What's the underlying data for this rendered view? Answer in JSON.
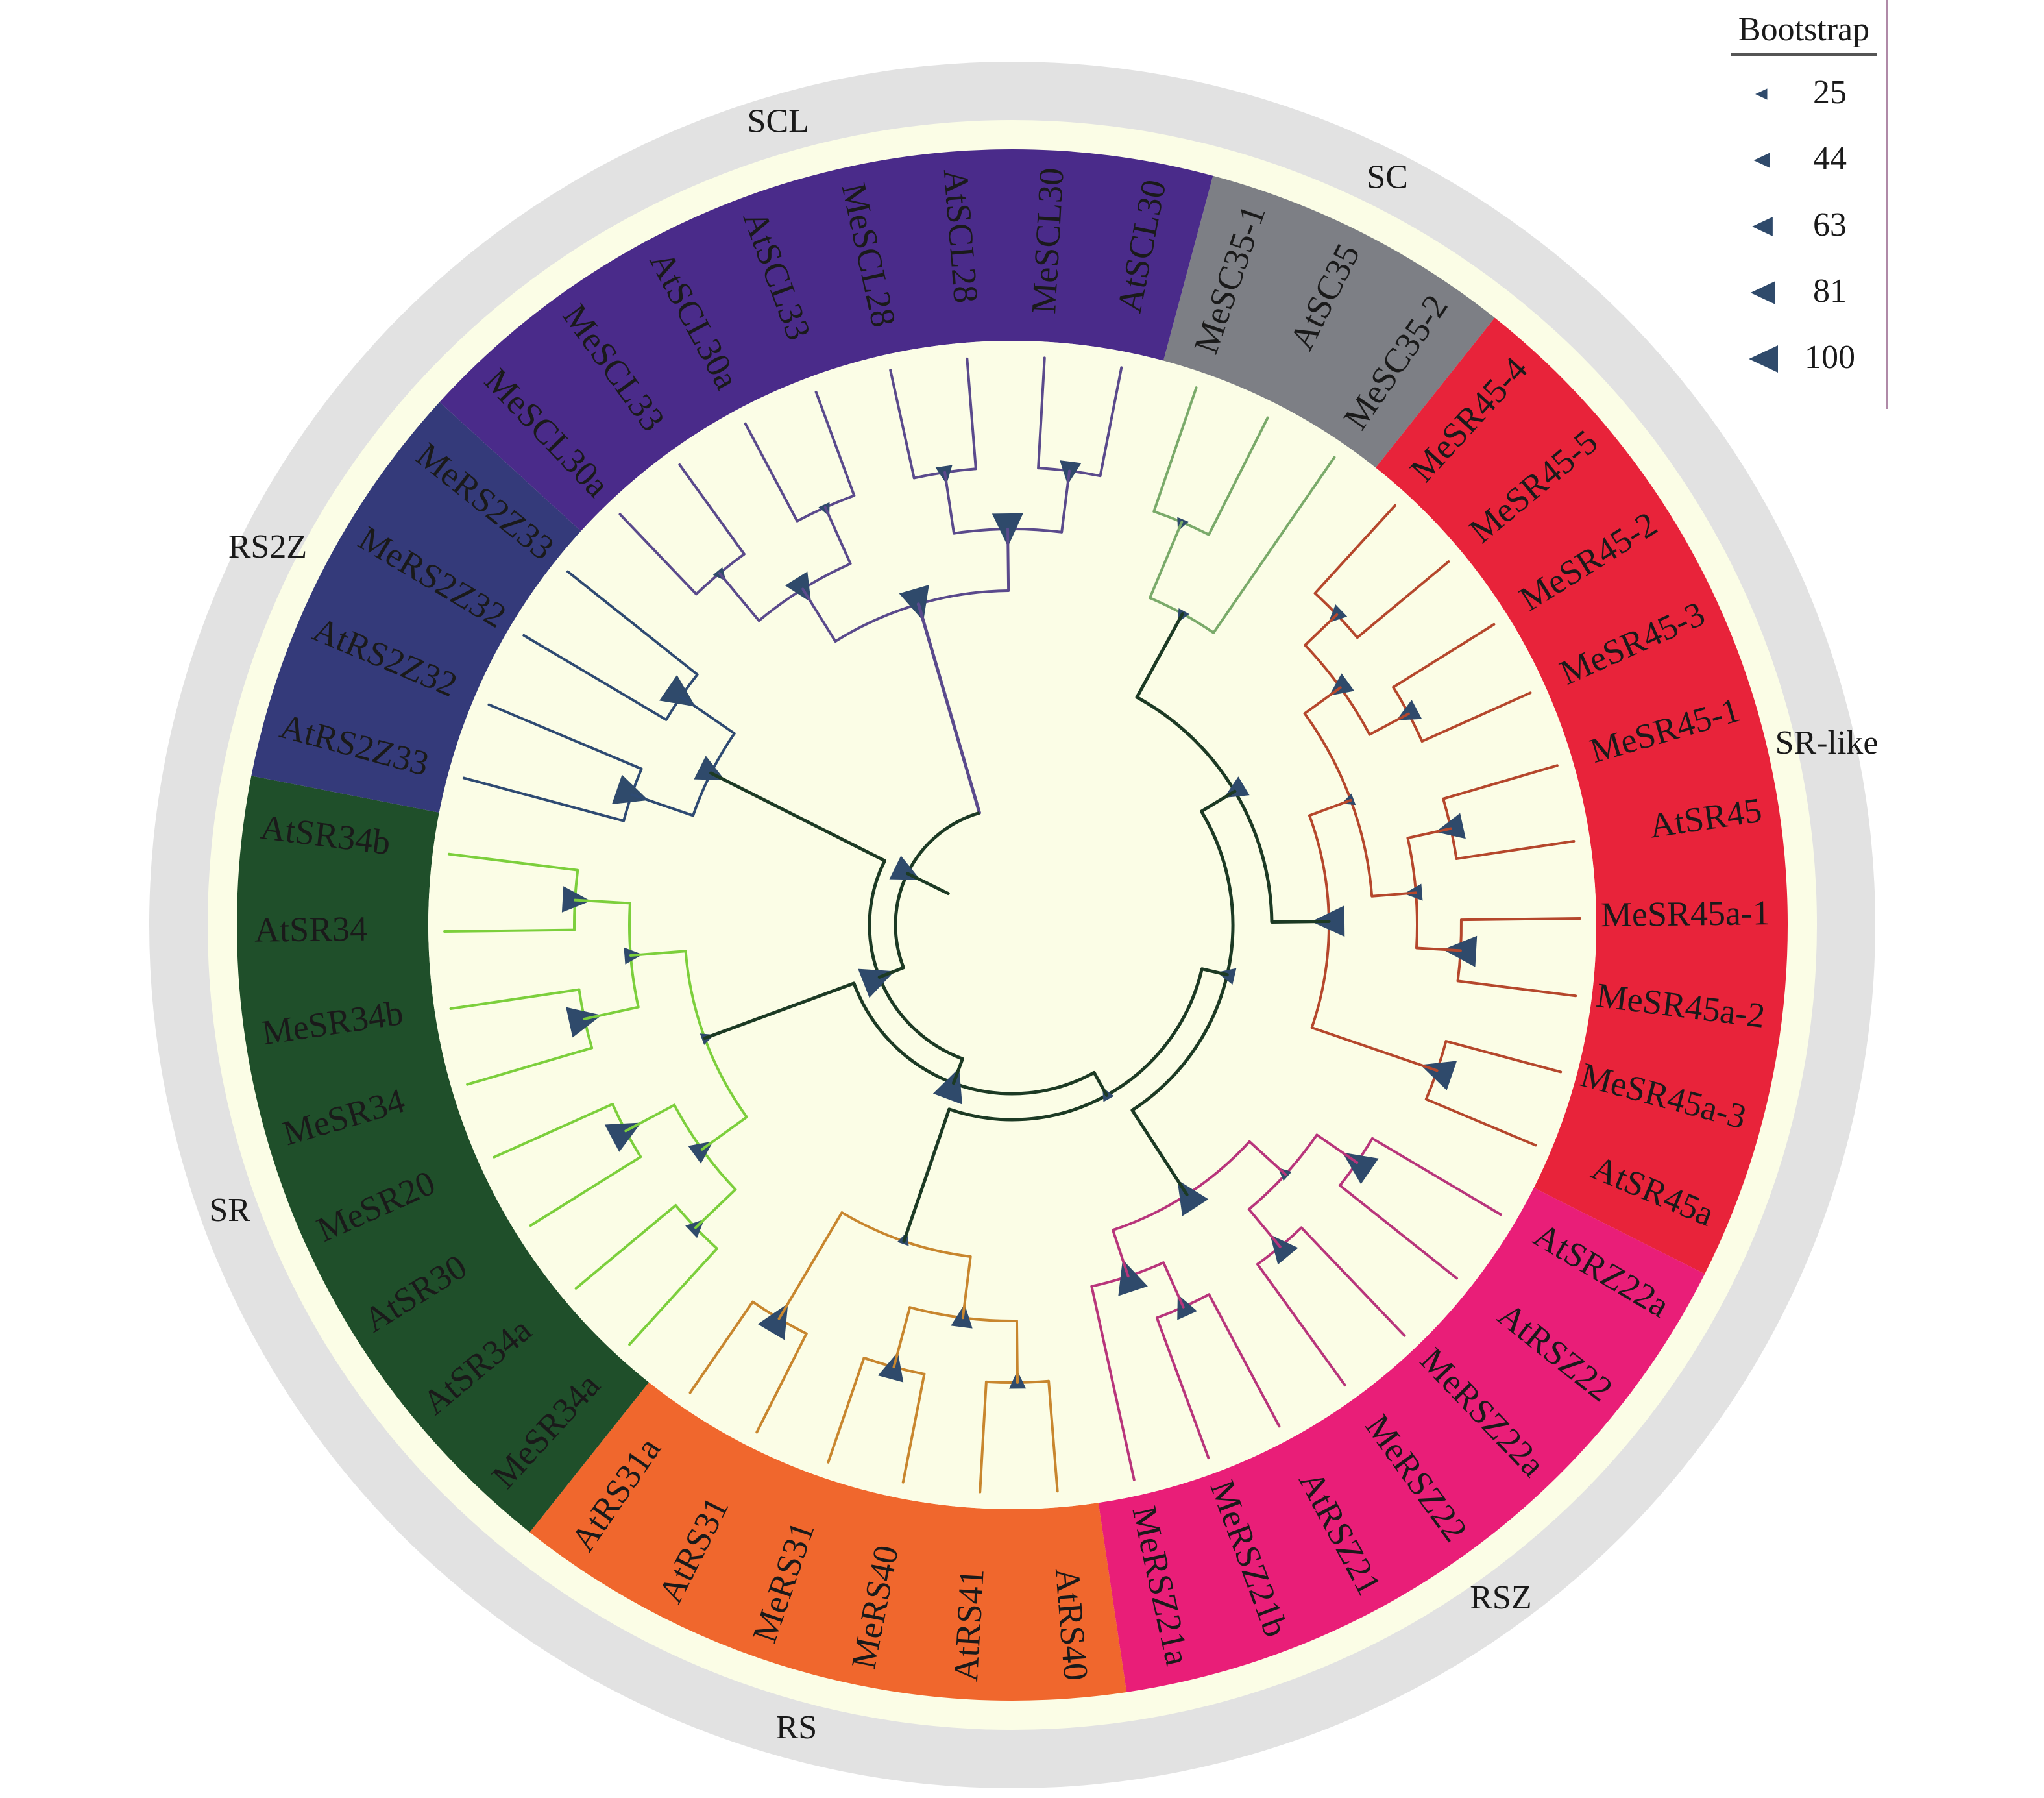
{
  "legend": {
    "title": "Bootstrap",
    "entries": [
      {
        "value": 25,
        "label": "25"
      },
      {
        "value": 44,
        "label": "44"
      },
      {
        "value": 63,
        "label": "63"
      },
      {
        "value": 81,
        "label": "81"
      },
      {
        "value": 100,
        "label": "100"
      }
    ],
    "marker_color": "#2f4a6b"
  },
  "colors": {
    "outer_ring": "#e2e2e2",
    "inner_background": "#fbfde6",
    "root": "#1c3a24"
  },
  "groups": [
    {
      "name": "SC",
      "color": "#7d7f85",
      "branch_color": "#7aaa6a",
      "leaves": [
        "MeSC35-1",
        "AtSC35",
        "MeSC35-2"
      ]
    },
    {
      "name": "SR-like",
      "color": "#e8233a",
      "branch_color": "#b5472c",
      "leaves": [
        "MeSR45-4",
        "MeSR45-5",
        "MeSR45-2",
        "MeSR45-3",
        "MeSR45-1",
        "AtSR45",
        "MeSR45a-1",
        "MeSR45a-2",
        "MeSR45a-3",
        "AtSR45a"
      ]
    },
    {
      "name": "RSZ",
      "color": "#e91e78",
      "branch_color": "#b8357b",
      "leaves": [
        "AtSRZ22a",
        "AtRSZ22",
        "MeRSZ22a",
        "MeRSZ22",
        "AtRSZ21",
        "MeRSZ21b",
        "MeRSZ21a"
      ]
    },
    {
      "name": "RS",
      "color": "#f0672d",
      "branch_color": "#c8862e",
      "leaves": [
        "AtRS40",
        "AtRS41",
        "MeRS40",
        "MeRS31",
        "AtRS31",
        "AtRS31a"
      ]
    },
    {
      "name": "SR",
      "color": "#1f4f2a",
      "branch_color": "#7ccf3c",
      "leaves": [
        "MeSR34a",
        "AtSR34a",
        "AtSR30",
        "MeSR20",
        "MeSR34",
        "MeSR34b",
        "AtSR34",
        "AtSR34b"
      ]
    },
    {
      "name": "RS2Z",
      "color": "#343a7a",
      "branch_color": "#2e4a72",
      "leaves": [
        "AtRS2Z33",
        "AtRS2Z32",
        "MeRS2Z32",
        "MeRS2Z33"
      ]
    },
    {
      "name": "SCL",
      "color": "#4a2b8a",
      "branch_color": "#5a4a8c",
      "leaves": [
        "MeSCL30a",
        "MeSCL33",
        "AtSCL30a",
        "AtSCL33",
        "MeSCL28",
        "AtSCL28",
        "MeSCL30",
        "AtSCL30"
      ]
    }
  ],
  "bootstrap_nodes": [
    25,
    25,
    44,
    63,
    81,
    100,
    100,
    63,
    44,
    25,
    100,
    100,
    81,
    63,
    25,
    100,
    100,
    44,
    81,
    100,
    63,
    25,
    44,
    100,
    100,
    81,
    63,
    44,
    25,
    100,
    100,
    81
  ]
}
